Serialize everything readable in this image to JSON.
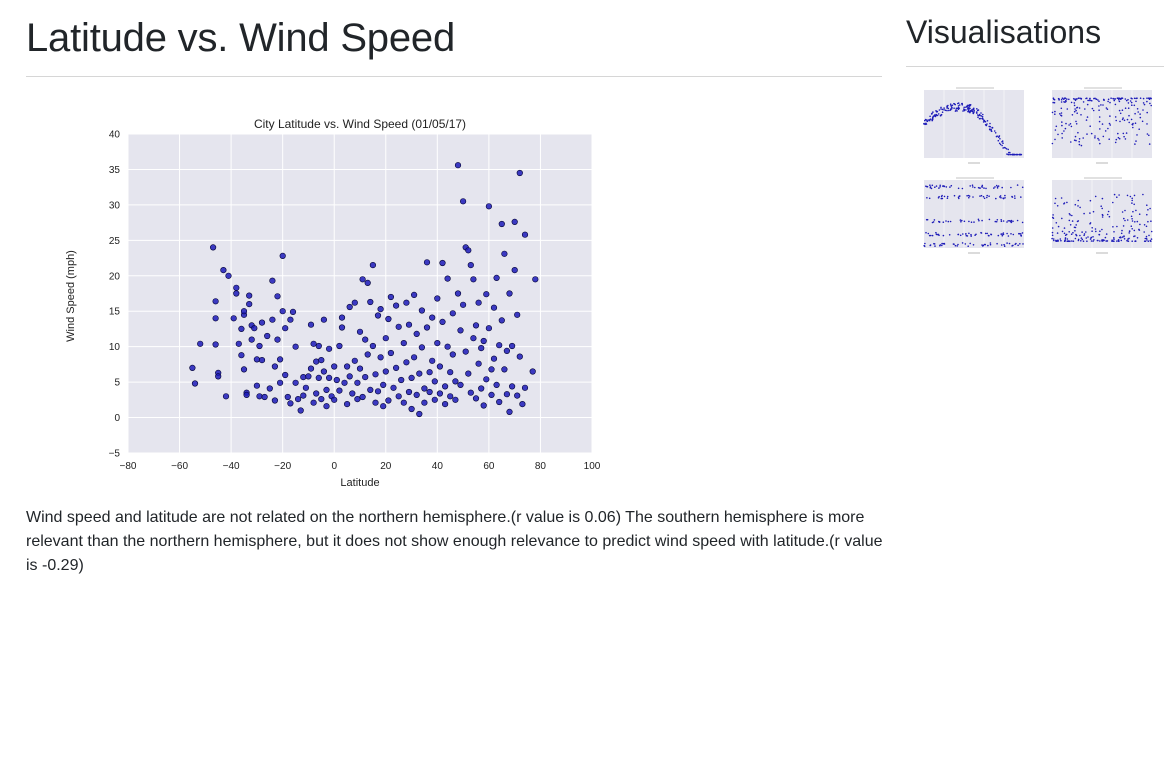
{
  "page": {
    "title": "Latitude vs. Wind Speed",
    "description": "Wind speed and latitude are not related on the northern hemisphere.(r value is 0.06) The southern hemisphere is more relevant than the northern hemisphere, but it does not show enough relevance to predict wind speed with latitude.(r value is -0.29)"
  },
  "sidebar": {
    "title": "Visualisations",
    "thumbnails": [
      {
        "name": "thumbnail-latitude-vs-temperature"
      },
      {
        "name": "thumbnail-latitude-vs-humidity"
      },
      {
        "name": "thumbnail-latitude-vs-cloudiness"
      },
      {
        "name": "thumbnail-latitude-vs-wind-speed"
      }
    ]
  },
  "colors": {
    "plot_background": "#e5e5ee",
    "grid": "#ffffff",
    "marker_fill": "#1d1bb8",
    "marker_edge": "#000033"
  },
  "chart_data": {
    "type": "scatter",
    "title": "City Latitude vs. Wind Speed (01/05/17)",
    "xlabel": "Latitude",
    "ylabel": "Wind Speed (mph)",
    "xlim": [
      -80,
      100
    ],
    "ylim": [
      -5,
      40
    ],
    "xticks": [
      "−80",
      "−60",
      "−40",
      "−20",
      "0",
      "20",
      "40",
      "60",
      "80",
      "100"
    ],
    "yticks": [
      "−5",
      "0",
      "5",
      "10",
      "15",
      "20",
      "25",
      "30",
      "35",
      "40"
    ],
    "grid": true,
    "legend": "none",
    "points": [
      [
        -55,
        7
      ],
      [
        -54,
        4.8
      ],
      [
        -52,
        10.4
      ],
      [
        -47,
        24
      ],
      [
        -46,
        16.4
      ],
      [
        -46,
        14
      ],
      [
        -46,
        10.3
      ],
      [
        -45,
        6.3
      ],
      [
        -45,
        5.8
      ],
      [
        -43,
        20.8
      ],
      [
        -42,
        3
      ],
      [
        -41,
        20
      ],
      [
        -39,
        14
      ],
      [
        -38,
        18.3
      ],
      [
        -38,
        17.5
      ],
      [
        -37,
        10.4
      ],
      [
        -36,
        8.8
      ],
      [
        -36,
        12.5
      ],
      [
        -35,
        14.5
      ],
      [
        -35,
        15
      ],
      [
        -35,
        6.8
      ],
      [
        -34,
        3.5
      ],
      [
        -34,
        3.2
      ],
      [
        -33,
        17.2
      ],
      [
        -33,
        16
      ],
      [
        -32,
        13
      ],
      [
        -32,
        11
      ],
      [
        -31,
        12.6
      ],
      [
        -30,
        8.2
      ],
      [
        -30,
        4.5
      ],
      [
        -29,
        10.1
      ],
      [
        -29,
        3
      ],
      [
        -28,
        13.4
      ],
      [
        -28,
        8.1
      ],
      [
        -27,
        2.9
      ],
      [
        -26,
        11.5
      ],
      [
        -25,
        4.1
      ],
      [
        -24,
        19.3
      ],
      [
        -24,
        13.8
      ],
      [
        -23,
        7.2
      ],
      [
        -23,
        2.4
      ],
      [
        -22,
        17.1
      ],
      [
        -22,
        11
      ],
      [
        -21,
        8.2
      ],
      [
        -21,
        4.9
      ],
      [
        -20,
        22.8
      ],
      [
        -20,
        15
      ],
      [
        -19,
        12.6
      ],
      [
        -19,
        6
      ],
      [
        -18,
        2.9
      ],
      [
        -17,
        2
      ],
      [
        -17,
        13.8
      ],
      [
        -16,
        14.9
      ],
      [
        -15,
        10
      ],
      [
        -15,
        4.9
      ],
      [
        -14,
        2.6
      ],
      [
        -13,
        1
      ],
      [
        -12,
        3.1
      ],
      [
        -12,
        5.7
      ],
      [
        -11,
        4.2
      ],
      [
        -10,
        5.8
      ],
      [
        -9,
        6.9
      ],
      [
        -9,
        13.1
      ],
      [
        -8,
        10.4
      ],
      [
        -8,
        2.1
      ],
      [
        -7,
        7.9
      ],
      [
        -7,
        3.4
      ],
      [
        -6,
        5.6
      ],
      [
        -6,
        10.1
      ],
      [
        -5,
        8.1
      ],
      [
        -5,
        2.6
      ],
      [
        -4,
        6.5
      ],
      [
        -4,
        13.8
      ],
      [
        -3,
        3.9
      ],
      [
        -3,
        1.6
      ],
      [
        -2,
        5.6
      ],
      [
        -2,
        9.7
      ],
      [
        -1,
        3
      ],
      [
        0,
        7.2
      ],
      [
        0,
        2.5
      ],
      [
        1,
        5.3
      ],
      [
        2,
        10.1
      ],
      [
        2,
        3.8
      ],
      [
        3,
        14.1
      ],
      [
        3,
        12.7
      ],
      [
        4,
        4.9
      ],
      [
        5,
        7.2
      ],
      [
        5,
        1.9
      ],
      [
        6,
        15.6
      ],
      [
        6,
        5.8
      ],
      [
        7,
        3.4
      ],
      [
        8,
        16.2
      ],
      [
        8,
        8
      ],
      [
        9,
        4.9
      ],
      [
        9,
        2.6
      ],
      [
        10,
        12.1
      ],
      [
        10,
        6.9
      ],
      [
        11,
        19.5
      ],
      [
        11,
        2.9
      ],
      [
        12,
        11
      ],
      [
        12,
        5.7
      ],
      [
        13,
        19
      ],
      [
        13,
        8.9
      ],
      [
        14,
        16.3
      ],
      [
        14,
        3.9
      ],
      [
        15,
        21.5
      ],
      [
        15,
        10.1
      ],
      [
        16,
        6.1
      ],
      [
        16,
        2.1
      ],
      [
        17,
        14.4
      ],
      [
        17,
        3.7
      ],
      [
        18,
        15.3
      ],
      [
        18,
        8.5
      ],
      [
        19,
        4.6
      ],
      [
        19,
        1.6
      ],
      [
        20,
        11.2
      ],
      [
        20,
        6.5
      ],
      [
        21,
        13.9
      ],
      [
        21,
        2.4
      ],
      [
        22,
        17
      ],
      [
        22,
        9.1
      ],
      [
        23,
        4.2
      ],
      [
        24,
        15.8
      ],
      [
        24,
        7
      ],
      [
        25,
        3
      ],
      [
        25,
        12.8
      ],
      [
        26,
        5.3
      ],
      [
        27,
        10.5
      ],
      [
        27,
        2.1
      ],
      [
        28,
        16.2
      ],
      [
        28,
        7.8
      ],
      [
        29,
        3.6
      ],
      [
        29,
        13.1
      ],
      [
        30,
        5.6
      ],
      [
        30,
        1.2
      ],
      [
        31,
        17.3
      ],
      [
        31,
        8.5
      ],
      [
        32,
        3.2
      ],
      [
        32,
        11.8
      ],
      [
        33,
        6.2
      ],
      [
        33,
        0.5
      ],
      [
        34,
        15.1
      ],
      [
        34,
        9.9
      ],
      [
        35,
        4.1
      ],
      [
        35,
        2.1
      ],
      [
        36,
        21.9
      ],
      [
        36,
        12.7
      ],
      [
        37,
        6.4
      ],
      [
        37,
        3.6
      ],
      [
        38,
        14.1
      ],
      [
        38,
        8
      ],
      [
        39,
        2.5
      ],
      [
        39,
        5.1
      ],
      [
        40,
        16.8
      ],
      [
        40,
        10.5
      ],
      [
        41,
        3.4
      ],
      [
        41,
        7.2
      ],
      [
        42,
        21.8
      ],
      [
        42,
        13.5
      ],
      [
        43,
        4.4
      ],
      [
        43,
        1.9
      ],
      [
        44,
        19.6
      ],
      [
        44,
        10
      ],
      [
        45,
        6.4
      ],
      [
        45,
        3
      ],
      [
        46,
        14.7
      ],
      [
        46,
        8.9
      ],
      [
        47,
        5.1
      ],
      [
        47,
        2.5
      ],
      [
        48,
        35.6
      ],
      [
        48,
        17.5
      ],
      [
        49,
        12.3
      ],
      [
        49,
        4.6
      ],
      [
        50,
        30.5
      ],
      [
        50,
        15.9
      ],
      [
        51,
        24
      ],
      [
        51,
        9.3
      ],
      [
        52,
        23.6
      ],
      [
        52,
        6.2
      ],
      [
        53,
        21.5
      ],
      [
        53,
        3.5
      ],
      [
        54,
        19.5
      ],
      [
        54,
        11.2
      ],
      [
        55,
        13
      ],
      [
        55,
        2.7
      ],
      [
        56,
        16.2
      ],
      [
        56,
        7.6
      ],
      [
        57,
        4.1
      ],
      [
        57,
        9.8
      ],
      [
        58,
        10.8
      ],
      [
        58,
        1.7
      ],
      [
        59,
        17.4
      ],
      [
        59,
        5.4
      ],
      [
        60,
        29.8
      ],
      [
        60,
        12.6
      ],
      [
        61,
        6.8
      ],
      [
        61,
        3.2
      ],
      [
        62,
        15.5
      ],
      [
        62,
        8.3
      ],
      [
        63,
        19.7
      ],
      [
        63,
        4.6
      ],
      [
        64,
        10.2
      ],
      [
        64,
        2.2
      ],
      [
        65,
        27.3
      ],
      [
        65,
        13.7
      ],
      [
        66,
        23.1
      ],
      [
        66,
        6.8
      ],
      [
        67,
        3.3
      ],
      [
        67,
        9.4
      ],
      [
        68,
        17.5
      ],
      [
        68,
        0.8
      ],
      [
        69,
        10.1
      ],
      [
        69,
        4.4
      ],
      [
        70,
        27.6
      ],
      [
        70,
        20.8
      ],
      [
        71,
        14.5
      ],
      [
        71,
        3.1
      ],
      [
        72,
        34.5
      ],
      [
        72,
        8.6
      ],
      [
        73,
        1.9
      ],
      [
        74,
        25.8
      ],
      [
        74,
        4.2
      ],
      [
        78,
        19.5
      ],
      [
        77,
        6.5
      ]
    ]
  }
}
